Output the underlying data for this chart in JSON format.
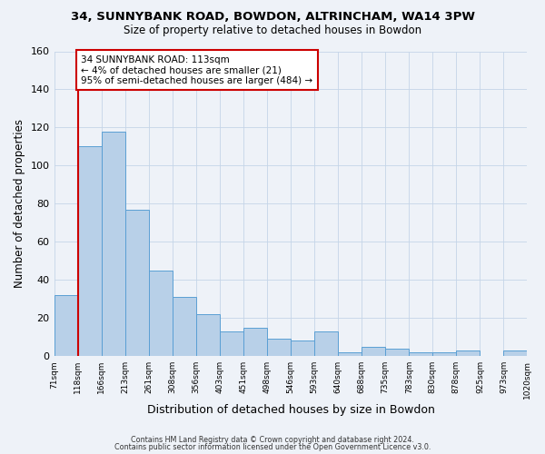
{
  "title": "34, SUNNYBANK ROAD, BOWDON, ALTRINCHAM, WA14 3PW",
  "subtitle": "Size of property relative to detached houses in Bowdon",
  "xlabel": "Distribution of detached houses by size in Bowdon",
  "ylabel": "Number of detached properties",
  "bin_labels": [
    "71sqm",
    "118sqm",
    "166sqm",
    "213sqm",
    "261sqm",
    "308sqm",
    "356sqm",
    "403sqm",
    "451sqm",
    "498sqm",
    "546sqm",
    "593sqm",
    "640sqm",
    "688sqm",
    "735sqm",
    "783sqm",
    "830sqm",
    "878sqm",
    "925sqm",
    "973sqm",
    "1020sqm"
  ],
  "bar_values": [
    32,
    110,
    118,
    77,
    45,
    31,
    22,
    13,
    15,
    9,
    8,
    13,
    2,
    5,
    4,
    2,
    2,
    3,
    0,
    3
  ],
  "bar_color": "#b8d0e8",
  "bar_edge_color": "#5a9fd4",
  "ylim": [
    0,
    160
  ],
  "yticks": [
    0,
    20,
    40,
    60,
    80,
    100,
    120,
    140,
    160
  ],
  "property_line_color": "#cc0000",
  "annotation_line1": "34 SUNNYBANK ROAD: 113sqm",
  "annotation_line2": "← 4% of detached houses are smaller (21)",
  "annotation_line3": "95% of semi-detached houses are larger (484) →",
  "annotation_box_color": "#ffffff",
  "annotation_box_edge_color": "#cc0000",
  "footer1": "Contains HM Land Registry data © Crown copyright and database right 2024.",
  "footer2": "Contains public sector information licensed under the Open Government Licence v3.0.",
  "background_color": "#eef2f8",
  "plot_background": "#eef2f8"
}
